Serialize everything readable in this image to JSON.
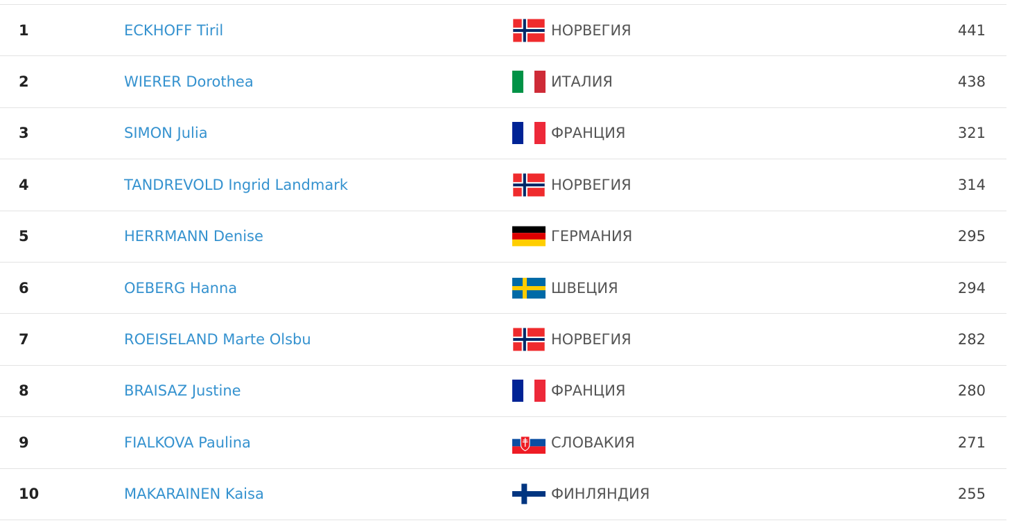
{
  "table": {
    "rows": [
      [
        1,
        "ECKHOFF Tiril",
        "НОРВЕГИЯ",
        441
      ],
      [
        2,
        "WIERER Dorothea",
        "ИТАЛИЯ",
        438
      ],
      [
        3,
        "SIMON Julia",
        "ФРАНЦИЯ",
        321
      ],
      [
        4,
        "TANDREVOLD Ingrid Landmark",
        "НОРВЕГИЯ",
        314
      ],
      [
        5,
        "HERRMANN Denise",
        "ГЕРМАНИЯ",
        295
      ],
      [
        6,
        "OEBERG Hanna",
        "ШВЕЦИЯ",
        294
      ],
      [
        7,
        "ROEISELAND Marte Olsbu",
        "НОРВЕГИЯ",
        282
      ],
      [
        8,
        "BRAISAZ Justine",
        "ФРАНЦИЯ",
        280
      ],
      [
        9,
        "FIALKOVA Paulina",
        "СЛОВАКИЯ",
        271
      ],
      [
        10,
        "MAKARAINEN Kaisa",
        "ФИНЛЯНДИЯ",
        255
      ]
    ]
  }
}
